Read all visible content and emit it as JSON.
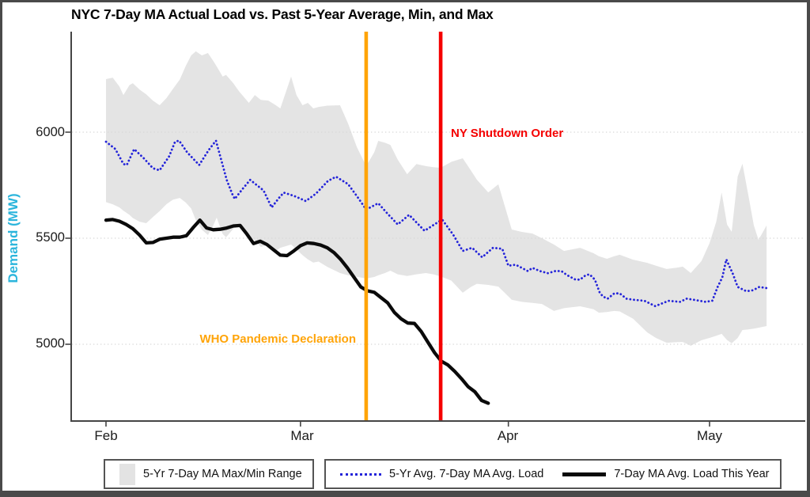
{
  "title": "NYC 7-Day MA Actual Load vs. Past 5-Year Average, Min, and Max",
  "y_axis": {
    "label": "Demand (MW)",
    "label_color": "#2bb5dc",
    "ticks": [
      "6000",
      "5500",
      "5000"
    ]
  },
  "x_axis": {
    "ticks": [
      "Feb",
      "Mar",
      "Apr",
      "May"
    ]
  },
  "legend": {
    "range_label": "5-Yr 7-Day MA Max/Min Range",
    "avg_label": "5-Yr Avg. 7-Day MA Avg. Load",
    "this_year_label": "7-Day MA Avg. Load This Year"
  },
  "chart_data": {
    "type": "line",
    "title": "NYC 7-Day MA Actual Load vs. Past 5-Year Average, Min, and Max",
    "xlabel": "",
    "ylabel": "Demand (MW)",
    "x_unit": "days since Feb 1 (leap year)",
    "x_axis_tick_labels": [
      "Feb",
      "Mar",
      "Apr",
      "May"
    ],
    "x_axis_tick_days": [
      0,
      29,
      60,
      90
    ],
    "y_axis_ticks": [
      6000,
      5500,
      5000
    ],
    "ylim": [
      4640,
      6475
    ],
    "grid": "horizontal dotted gridlines at y ticks",
    "legend_position": "bottom",
    "events": [
      {
        "label": "WHO Pandemic Declaration",
        "day": 38.8,
        "approx_date": "Mar 11",
        "color": "#ffa408",
        "label_side": "left"
      },
      {
        "label": "NY Shutdown Order",
        "day": 49.9,
        "approx_date": "Mar 22",
        "color": "#f50000",
        "label_side": "right"
      }
    ],
    "band": {
      "name": "5-Yr 7-Day MA Max/Min Range",
      "color": "#e4e4e4",
      "points_format": [
        "day",
        "min_mw",
        "max_mw"
      ],
      "points": [
        [
          0,
          5670,
          6250
        ],
        [
          1,
          5660,
          6257
        ],
        [
          2,
          5645,
          6215
        ],
        [
          2.6,
          5630,
          6175
        ],
        [
          3.5,
          5610,
          6222
        ],
        [
          4,
          5595,
          6231
        ],
        [
          5,
          5578,
          6201
        ],
        [
          6,
          5571,
          6178
        ],
        [
          7,
          5600,
          6149
        ],
        [
          8,
          5628,
          6127
        ],
        [
          9,
          5660,
          6160
        ],
        [
          10,
          5682,
          6205
        ],
        [
          11,
          5690,
          6248
        ],
        [
          11.9,
          5668,
          6313
        ],
        [
          12.7,
          5640,
          6362
        ],
        [
          13.4,
          5585,
          6381
        ],
        [
          14.3,
          5540,
          6362
        ],
        [
          15.2,
          5515,
          6373
        ],
        [
          16,
          5560,
          6336
        ],
        [
          16.5,
          5597,
          6310
        ],
        [
          17.4,
          5520,
          6262
        ],
        [
          17.9,
          5504,
          6270
        ],
        [
          19,
          5545,
          6230
        ],
        [
          19.8,
          5555,
          6194
        ],
        [
          21.3,
          5510,
          6138
        ],
        [
          22.2,
          5490,
          6175
        ],
        [
          23.1,
          5459,
          6152
        ],
        [
          24.2,
          5470,
          6149
        ],
        [
          25.2,
          5437,
          6130
        ],
        [
          26,
          5455,
          6112
        ],
        [
          27.6,
          5470,
          6262
        ],
        [
          28.4,
          5448,
          6175
        ],
        [
          29.3,
          5420,
          6127
        ],
        [
          30.1,
          5400,
          6138
        ],
        [
          30.9,
          5385,
          6112
        ],
        [
          31.7,
          5390,
          6119
        ],
        [
          33,
          5365,
          6125
        ],
        [
          34.9,
          5336,
          6127
        ],
        [
          36.1,
          5325,
          6040
        ],
        [
          37.4,
          5318,
          5930
        ],
        [
          38.8,
          5310,
          5840
        ],
        [
          40,
          5317,
          5905
        ],
        [
          40.6,
          5325,
          5959
        ],
        [
          41.6,
          5336,
          5950
        ],
        [
          42.4,
          5347,
          5940
        ],
        [
          43.5,
          5330,
          5870
        ],
        [
          44.9,
          5322,
          5802
        ],
        [
          46.3,
          5330,
          5850
        ],
        [
          47.7,
          5336,
          5840
        ],
        [
          48.8,
          5330,
          5835
        ],
        [
          49.9,
          5320,
          5832
        ],
        [
          51.5,
          5300,
          5860
        ],
        [
          53.2,
          5243,
          5877
        ],
        [
          54.4,
          5270,
          5820
        ],
        [
          55.3,
          5285,
          5776
        ],
        [
          57,
          5280,
          5716
        ],
        [
          58.5,
          5272,
          5754
        ],
        [
          60.5,
          5210,
          5541
        ],
        [
          62,
          5200,
          5530
        ],
        [
          63.6,
          5195,
          5522
        ],
        [
          65,
          5190,
          5500
        ],
        [
          66.8,
          5157,
          5470
        ],
        [
          68.3,
          5170,
          5440
        ],
        [
          70.7,
          5179,
          5455
        ],
        [
          72.7,
          5165,
          5429
        ],
        [
          73.5,
          5149,
          5415
        ],
        [
          74.7,
          5152,
          5403
        ],
        [
          75.8,
          5157,
          5415
        ],
        [
          76.6,
          5155,
          5422
        ],
        [
          78.6,
          5120,
          5399
        ],
        [
          80.7,
          5056,
          5384
        ],
        [
          82,
          5030,
          5370
        ],
        [
          83.6,
          5007,
          5355
        ],
        [
          85.3,
          5010,
          5362
        ],
        [
          86,
          5011,
          5366
        ],
        [
          87.2,
          4993,
          5336
        ],
        [
          88.8,
          5019,
          5392
        ],
        [
          90,
          5030,
          5477
        ],
        [
          91,
          5040,
          5578
        ],
        [
          91.8,
          5049,
          5716
        ],
        [
          92.6,
          5020,
          5565
        ],
        [
          93.3,
          5005,
          5530
        ],
        [
          94.2,
          5030,
          5791
        ],
        [
          94.9,
          5067,
          5851
        ],
        [
          95.8,
          5070,
          5700
        ],
        [
          96.6,
          5074,
          5560
        ],
        [
          97.3,
          5078,
          5492
        ],
        [
          98.5,
          5086,
          5560
        ]
      ]
    },
    "series": [
      {
        "name": "5-Yr Avg. 7-Day MA Avg. Load",
        "style": "dotted",
        "color": "#2424d9",
        "width": 2.8,
        "points_format": [
          "day",
          "mw"
        ],
        "points": [
          [
            0,
            5955
          ],
          [
            1.4,
            5920
          ],
          [
            2.6,
            5850
          ],
          [
            3.1,
            5845
          ],
          [
            4.2,
            5920
          ],
          [
            5.7,
            5875
          ],
          [
            7,
            5830
          ],
          [
            8,
            5820
          ],
          [
            9.4,
            5885
          ],
          [
            10.3,
            5955
          ],
          [
            10.9,
            5960
          ],
          [
            12.1,
            5905
          ],
          [
            13.9,
            5845
          ],
          [
            15.3,
            5915
          ],
          [
            16.4,
            5960
          ],
          [
            18,
            5775
          ],
          [
            18.8,
            5710
          ],
          [
            19.2,
            5685
          ],
          [
            20.3,
            5730
          ],
          [
            21.5,
            5775
          ],
          [
            23.5,
            5725
          ],
          [
            24.7,
            5645
          ],
          [
            25.8,
            5690
          ],
          [
            26.5,
            5715
          ],
          [
            28,
            5700
          ],
          [
            29.1,
            5685
          ],
          [
            29.8,
            5675
          ],
          [
            31.3,
            5710
          ],
          [
            33.1,
            5770
          ],
          [
            34.3,
            5790
          ],
          [
            36.1,
            5755
          ],
          [
            37.6,
            5690
          ],
          [
            38.8,
            5635
          ],
          [
            40.6,
            5665
          ],
          [
            42,
            5615
          ],
          [
            43.5,
            5565
          ],
          [
            45.2,
            5610
          ],
          [
            47.5,
            5535
          ],
          [
            49.7,
            5580
          ],
          [
            50.2,
            5585
          ],
          [
            51.8,
            5515
          ],
          [
            53.2,
            5440
          ],
          [
            54.6,
            5455
          ],
          [
            56.1,
            5410
          ],
          [
            57.7,
            5455
          ],
          [
            59.1,
            5450
          ],
          [
            60,
            5370
          ],
          [
            61.1,
            5375
          ],
          [
            62.9,
            5345
          ],
          [
            63.6,
            5360
          ],
          [
            64.7,
            5345
          ],
          [
            65.9,
            5335
          ],
          [
            67,
            5345
          ],
          [
            67.9,
            5345
          ],
          [
            68.8,
            5325
          ],
          [
            70,
            5305
          ],
          [
            70.7,
            5305
          ],
          [
            71.5,
            5325
          ],
          [
            72.1,
            5330
          ],
          [
            72.9,
            5305
          ],
          [
            73.6,
            5245
          ],
          [
            74.1,
            5225
          ],
          [
            74.8,
            5215
          ],
          [
            75.8,
            5240
          ],
          [
            76.6,
            5240
          ],
          [
            77.6,
            5215
          ],
          [
            78.6,
            5210
          ],
          [
            80.3,
            5205
          ],
          [
            81.9,
            5180
          ],
          [
            83.9,
            5205
          ],
          [
            85.6,
            5200
          ],
          [
            86.6,
            5215
          ],
          [
            87.6,
            5210
          ],
          [
            89.4,
            5200
          ],
          [
            90.4,
            5205
          ],
          [
            91.2,
            5270
          ],
          [
            91.9,
            5315
          ],
          [
            92.5,
            5400
          ],
          [
            93.5,
            5330
          ],
          [
            94.2,
            5270
          ],
          [
            95.5,
            5250
          ],
          [
            96.5,
            5255
          ],
          [
            97.4,
            5270
          ],
          [
            98.5,
            5265
          ]
        ]
      },
      {
        "name": "7-Day MA Avg. Load This Year",
        "style": "solid",
        "color": "#0a0a0a",
        "width": 4.3,
        "points_format": [
          "day",
          "mw"
        ],
        "points": [
          [
            0,
            5585
          ],
          [
            1,
            5588
          ],
          [
            2,
            5580
          ],
          [
            3,
            5565
          ],
          [
            4,
            5545
          ],
          [
            5,
            5515
          ],
          [
            6,
            5478
          ],
          [
            7,
            5480
          ],
          [
            8,
            5495
          ],
          [
            9,
            5500
          ],
          [
            10,
            5505
          ],
          [
            11,
            5505
          ],
          [
            12,
            5512
          ],
          [
            13,
            5550
          ],
          [
            14,
            5585
          ],
          [
            15,
            5548
          ],
          [
            16,
            5540
          ],
          [
            17,
            5542
          ],
          [
            18,
            5548
          ],
          [
            19,
            5558
          ],
          [
            20,
            5560
          ],
          [
            21,
            5520
          ],
          [
            22,
            5475
          ],
          [
            23,
            5486
          ],
          [
            24,
            5470
          ],
          [
            25,
            5445
          ],
          [
            26,
            5420
          ],
          [
            27,
            5418
          ],
          [
            28,
            5440
          ],
          [
            29,
            5465
          ],
          [
            30,
            5478
          ],
          [
            31,
            5475
          ],
          [
            32,
            5468
          ],
          [
            33,
            5455
          ],
          [
            34,
            5432
          ],
          [
            35,
            5400
          ],
          [
            36,
            5360
          ],
          [
            37,
            5315
          ],
          [
            38,
            5270
          ],
          [
            39,
            5252
          ],
          [
            40,
            5245
          ],
          [
            41,
            5220
          ],
          [
            42,
            5195
          ],
          [
            43,
            5150
          ],
          [
            44,
            5120
          ],
          [
            45,
            5100
          ],
          [
            46,
            5098
          ],
          [
            47,
            5060
          ],
          [
            48,
            5010
          ],
          [
            49,
            4960
          ],
          [
            50,
            4920
          ],
          [
            51,
            4902
          ],
          [
            52,
            4872
          ],
          [
            53,
            4838
          ],
          [
            54,
            4800
          ],
          [
            55,
            4776
          ],
          [
            56,
            4735
          ],
          [
            57,
            4722
          ]
        ]
      }
    ]
  }
}
